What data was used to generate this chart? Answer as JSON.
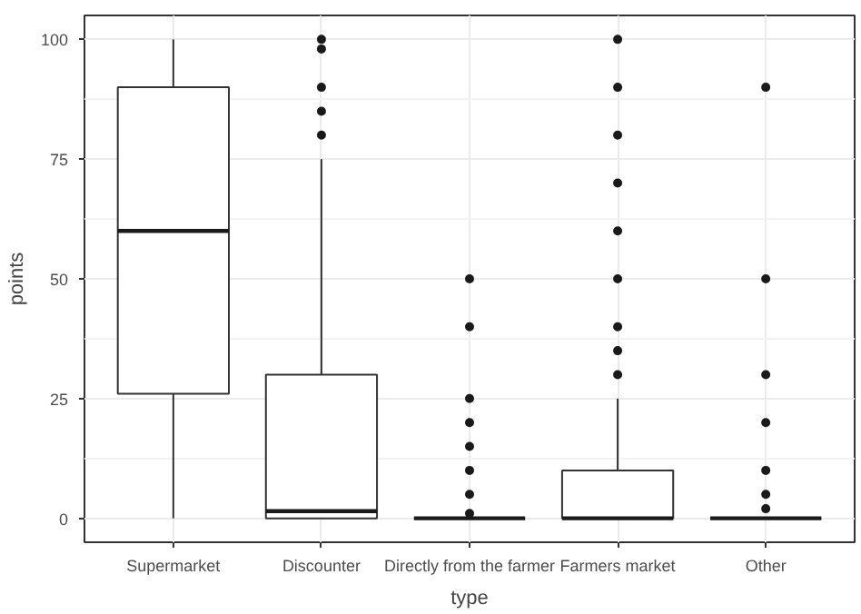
{
  "chart_data": {
    "type": "box",
    "xlabel": "type",
    "ylabel": "points",
    "categories": [
      "Supermarket",
      "Discounter",
      "Directly from the farmer",
      "Farmers market",
      "Other"
    ],
    "boxes": [
      {
        "low": 0,
        "q1": 26,
        "median": 60,
        "q3": 90,
        "high": 100
      },
      {
        "low": 0,
        "q1": 0,
        "median": 1.5,
        "q3": 30,
        "high": 75,
        "outliers": [
          80,
          85,
          90,
          98,
          100
        ]
      },
      {
        "low": 0,
        "q1": 0,
        "median": 0,
        "q3": 0,
        "high": 0,
        "outliers": [
          1,
          5,
          10,
          15,
          20,
          25,
          40,
          50
        ]
      },
      {
        "low": 0,
        "q1": 0,
        "median": 0,
        "q3": 10,
        "high": 25,
        "outliers": [
          30,
          35,
          40,
          50,
          60,
          70,
          80,
          90,
          100
        ]
      },
      {
        "low": 0,
        "q1": 0,
        "median": 0,
        "q3": 0,
        "high": 0,
        "outliers": [
          2,
          5,
          10,
          20,
          30,
          50,
          90
        ]
      }
    ],
    "ylim": [
      -5,
      105
    ],
    "yticks": [
      0,
      25,
      50,
      75,
      100
    ],
    "grid": true
  }
}
